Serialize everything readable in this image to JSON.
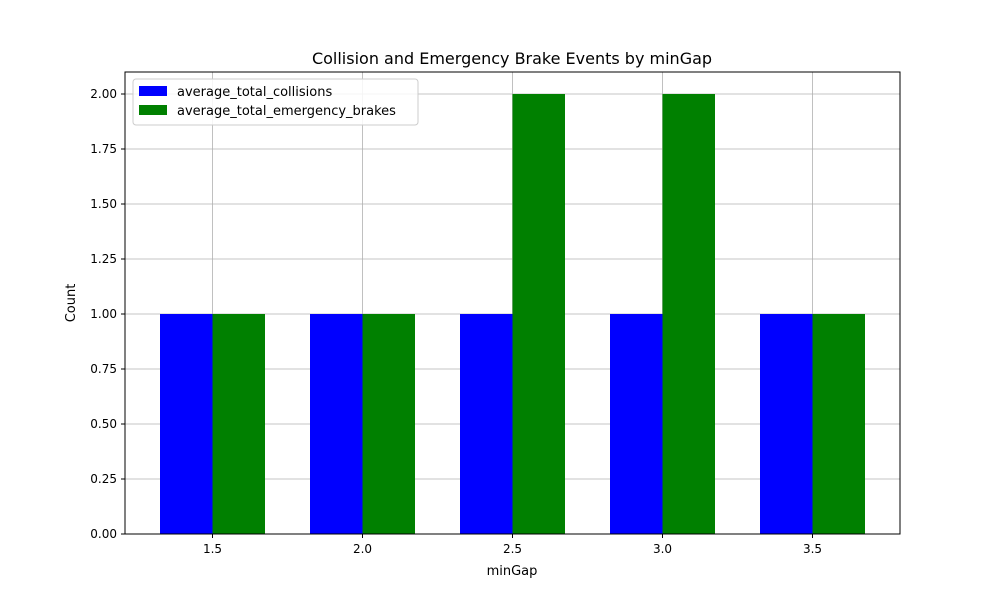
{
  "chart_data": {
    "type": "bar",
    "title": "Collision and Emergency Brake Events by minGap",
    "xlabel": "minGap",
    "ylabel": "Count",
    "categories": [
      "1.5",
      "2.0",
      "2.5",
      "3.0",
      "3.5"
    ],
    "series": [
      {
        "name": "average_total_collisions",
        "color": "#0000ff",
        "values": [
          1,
          1,
          1,
          1,
          1
        ]
      },
      {
        "name": "average_total_emergency_brakes",
        "color": "#008000",
        "values": [
          1,
          1,
          2,
          2,
          1
        ]
      }
    ],
    "ylim": [
      0,
      2.1
    ],
    "yticks": [
      "0.00",
      "0.25",
      "0.50",
      "0.75",
      "1.00",
      "1.25",
      "1.50",
      "1.75",
      "2.00"
    ],
    "grid": true,
    "legend_position": "top-left"
  }
}
